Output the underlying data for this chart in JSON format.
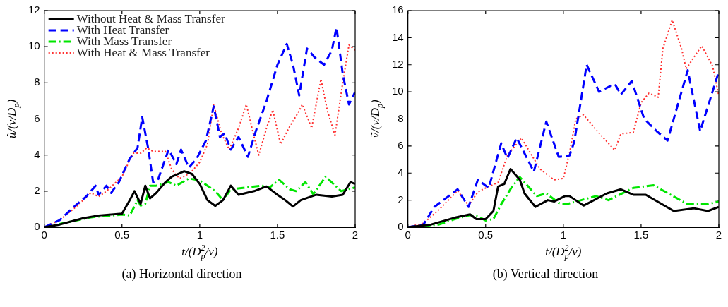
{
  "chart_data": [
    {
      "type": "line",
      "title": "(a)  Horizontal direction",
      "xlabel": "t/(D$_{p}$$^{2}$/ν)",
      "ylabel": "ũ/(ν/D$_{p}$)",
      "xlim": [
        0,
        2
      ],
      "xticks": [
        0,
        0.5,
        1,
        1.5,
        2
      ],
      "ylim": [
        0,
        12
      ],
      "yticks": [
        0,
        2,
        4,
        6,
        8,
        10,
        12
      ],
      "grid": false,
      "legend": "top left",
      "marker": "none",
      "series": [
        {
          "name": "Without Heat & Mass Transfer",
          "color": "#000000",
          "line_style": "solid",
          "x": [
            0,
            0.1,
            0.25,
            0.35,
            0.5,
            0.55,
            0.58,
            0.62,
            0.65,
            0.68,
            0.72,
            0.78,
            0.82,
            0.9,
            0.95,
            1.0,
            1.05,
            1.1,
            1.15,
            1.2,
            1.25,
            1.35,
            1.43,
            1.5,
            1.55,
            1.6,
            1.65,
            1.75,
            1.85,
            1.92,
            1.97,
            2.0
          ],
          "values": [
            0,
            0.15,
            0.5,
            0.65,
            0.75,
            1.5,
            2.0,
            1.3,
            2.3,
            1.6,
            1.9,
            2.5,
            2.8,
            3.1,
            2.95,
            2.4,
            1.5,
            1.18,
            1.5,
            2.3,
            1.8,
            2.0,
            2.26,
            1.8,
            1.5,
            1.15,
            1.5,
            1.8,
            1.7,
            1.8,
            2.5,
            2.4
          ]
        },
        {
          "name": "With Heat Transfer",
          "color": "#0000ff",
          "line_style": "dashed",
          "x": [
            0,
            0.1,
            0.2,
            0.27,
            0.3,
            0.33,
            0.35,
            0.4,
            0.43,
            0.48,
            0.55,
            0.6,
            0.63,
            0.67,
            0.7,
            0.73,
            0.8,
            0.85,
            0.88,
            0.93,
            0.98,
            1.04,
            1.09,
            1.13,
            1.16,
            1.2,
            1.25,
            1.31,
            1.36,
            1.43,
            1.5,
            1.56,
            1.6,
            1.64,
            1.69,
            1.74,
            1.8,
            1.85,
            1.88,
            1.92,
            1.96,
            2.0
          ],
          "values": [
            0,
            0.4,
            1.2,
            1.7,
            2.0,
            2.3,
            1.8,
            2.3,
            1.9,
            2.5,
            3.8,
            4.4,
            6.1,
            4.3,
            2.5,
            2.6,
            4.3,
            3.5,
            4.3,
            3.3,
            3.8,
            4.8,
            6.7,
            5.0,
            5.2,
            4.3,
            5.0,
            3.9,
            5.3,
            7.0,
            9.0,
            10.15,
            9.0,
            7.3,
            9.9,
            9.4,
            9.0,
            9.8,
            11.07,
            8.5,
            6.8,
            7.5
          ]
        },
        {
          "name": "With Mass Transfer",
          "color": "#00e600",
          "line_style": "dashdot",
          "x": [
            0,
            0.3,
            0.5,
            0.55,
            0.6,
            0.62,
            0.65,
            0.68,
            0.72,
            0.8,
            0.85,
            0.93,
            1.0,
            1.05,
            1.1,
            1.15,
            1.2,
            1.3,
            1.4,
            1.45,
            1.51,
            1.58,
            1.62,
            1.68,
            1.73,
            1.81,
            1.86,
            1.91,
            1.95,
            2.0
          ],
          "values": [
            0,
            0.55,
            0.7,
            0.65,
            1.5,
            1.2,
            1.3,
            2.3,
            2.3,
            2.5,
            2.3,
            2.7,
            2.6,
            2.3,
            2.0,
            1.5,
            2.1,
            2.2,
            2.3,
            2.2,
            2.63,
            2.1,
            2.0,
            2.5,
            1.83,
            2.8,
            2.4,
            2.0,
            2.1,
            2.2
          ]
        },
        {
          "name": "With Heat & Mass Transfer",
          "color": "#ff3030",
          "line_style": "dotted",
          "x": [
            0,
            0.1,
            0.2,
            0.3,
            0.35,
            0.4,
            0.5,
            0.57,
            0.62,
            0.66,
            0.7,
            0.78,
            0.82,
            0.87,
            0.94,
            1.0,
            1.05,
            1.09,
            1.14,
            1.19,
            1.25,
            1.3,
            1.35,
            1.38,
            1.43,
            1.47,
            1.52,
            1.58,
            1.63,
            1.66,
            1.72,
            1.78,
            1.82,
            1.87,
            1.92,
            1.96,
            2.0
          ],
          "values": [
            0,
            0.4,
            1.1,
            1.9,
            1.7,
            2.0,
            2.8,
            4.1,
            4.1,
            4.4,
            4.2,
            4.2,
            3.2,
            2.7,
            3.0,
            3.6,
            4.6,
            6.8,
            5.2,
            4.3,
            5.5,
            6.8,
            5.0,
            4.0,
            5.5,
            6.5,
            4.6,
            5.6,
            6.3,
            6.8,
            5.5,
            8.2,
            6.5,
            5.1,
            8.0,
            10.1,
            9.8
          ]
        }
      ]
    },
    {
      "type": "line",
      "title": "(b)  Vertical direction",
      "xlabel": "t/(D$_{p}$$^{2}$/ν)",
      "ylabel": "ṽ/(ν/D$_{p}$)",
      "xlim": [
        0,
        2
      ],
      "xticks": [
        0,
        0.5,
        1,
        1.5,
        2
      ],
      "ylim": [
        0,
        16
      ],
      "yticks": [
        0,
        2,
        4,
        6,
        8,
        10,
        12,
        14,
        16
      ],
      "grid": false,
      "marker": "none",
      "series": [
        {
          "color": "#000000",
          "line_style": "solid",
          "x": [
            0,
            0.15,
            0.3,
            0.4,
            0.44,
            0.5,
            0.55,
            0.58,
            0.62,
            0.66,
            0.72,
            0.75,
            0.82,
            0.9,
            0.94,
            1.01,
            1.04,
            1.13,
            1.28,
            1.37,
            1.45,
            1.53,
            1.62,
            1.71,
            1.84,
            1.93,
            2.0
          ],
          "values": [
            0,
            0.2,
            0.7,
            0.95,
            0.6,
            0.6,
            1.2,
            3.0,
            3.2,
            4.3,
            3.5,
            2.5,
            1.5,
            2.0,
            1.9,
            2.3,
            2.3,
            1.6,
            2.5,
            2.8,
            2.4,
            2.4,
            1.8,
            1.2,
            1.4,
            1.2,
            1.5
          ]
        },
        {
          "color": "#0000ff",
          "line_style": "dashed",
          "x": [
            0,
            0.1,
            0.17,
            0.32,
            0.39,
            0.45,
            0.52,
            0.6,
            0.64,
            0.7,
            0.81,
            0.89,
            0.97,
            1.04,
            1.07,
            1.15,
            1.23,
            1.33,
            1.37,
            1.44,
            1.52,
            1.6,
            1.67,
            1.8,
            1.88,
            2.0
          ],
          "values": [
            0,
            0.2,
            1.5,
            2.8,
            1.5,
            3.5,
            2.9,
            6.2,
            5.1,
            6.6,
            4.1,
            7.8,
            5.2,
            5.3,
            6.3,
            12.0,
            10.0,
            10.6,
            9.8,
            10.8,
            8.0,
            7.1,
            6.4,
            11.6,
            7.1,
            11.5
          ]
        },
        {
          "color": "#00e600",
          "line_style": "dashdot",
          "x": [
            0,
            0.2,
            0.3,
            0.4,
            0.45,
            0.5,
            0.55,
            0.6,
            0.67,
            0.72,
            0.83,
            0.89,
            0.97,
            1.02,
            1.21,
            1.29,
            1.45,
            1.58,
            1.69,
            1.8,
            1.93,
            2.0
          ],
          "values": [
            0,
            0.2,
            0.6,
            0.9,
            0.8,
            0.5,
            0.6,
            1.7,
            3.0,
            3.7,
            2.3,
            2.5,
            1.8,
            1.7,
            2.3,
            2.0,
            2.9,
            3.1,
            2.4,
            1.7,
            1.7,
            1.9
          ]
        },
        {
          "color": "#ff3030",
          "line_style": "dotted",
          "x": [
            0,
            0.1,
            0.2,
            0.32,
            0.39,
            0.45,
            0.5,
            0.58,
            0.64,
            0.73,
            0.85,
            0.94,
            1.0,
            1.04,
            1.08,
            1.13,
            1.21,
            1.33,
            1.37,
            1.45,
            1.5,
            1.55,
            1.61,
            1.64,
            1.7,
            1.76,
            1.79,
            1.89,
            1.96,
            2.0
          ],
          "values": [
            0,
            0.3,
            1.3,
            2.7,
            1.6,
            2.6,
            2.9,
            3.3,
            5.3,
            6.6,
            4.3,
            3.5,
            3.6,
            5.5,
            8.0,
            8.3,
            7.2,
            5.7,
            6.9,
            7.0,
            9.2,
            9.9,
            9.6,
            13.2,
            15.3,
            13.2,
            11.7,
            13.4,
            11.9,
            9.7
          ]
        }
      ]
    }
  ]
}
